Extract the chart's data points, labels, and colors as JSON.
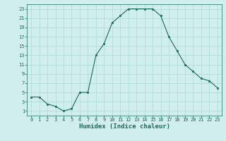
{
  "x": [
    0,
    1,
    2,
    3,
    4,
    5,
    6,
    7,
    8,
    9,
    10,
    11,
    12,
    13,
    14,
    15,
    16,
    17,
    18,
    19,
    20,
    21,
    22,
    23
  ],
  "y": [
    4,
    4,
    2.5,
    2,
    1,
    1.5,
    5,
    5,
    13,
    15.5,
    20,
    21.5,
    23,
    23,
    23,
    23,
    21.5,
    17,
    14,
    11,
    9.5,
    8,
    7.5,
    6
  ],
  "line_color": "#1a6b5a",
  "marker_color": "#1a6b5a",
  "bg_color": "#d0eeeb",
  "grid_color": "#aed8d3",
  "xlabel": "Humidex (Indice chaleur)",
  "xlim": [
    -0.5,
    23.5
  ],
  "ylim": [
    0,
    24
  ],
  "yticks": [
    1,
    3,
    5,
    7,
    9,
    11,
    13,
    15,
    17,
    19,
    21,
    23
  ],
  "xticks": [
    0,
    1,
    2,
    3,
    4,
    5,
    6,
    7,
    8,
    9,
    10,
    11,
    12,
    13,
    14,
    15,
    16,
    17,
    18,
    19,
    20,
    21,
    22,
    23
  ],
  "tick_fontsize": 5.0,
  "label_fontsize": 6.5
}
